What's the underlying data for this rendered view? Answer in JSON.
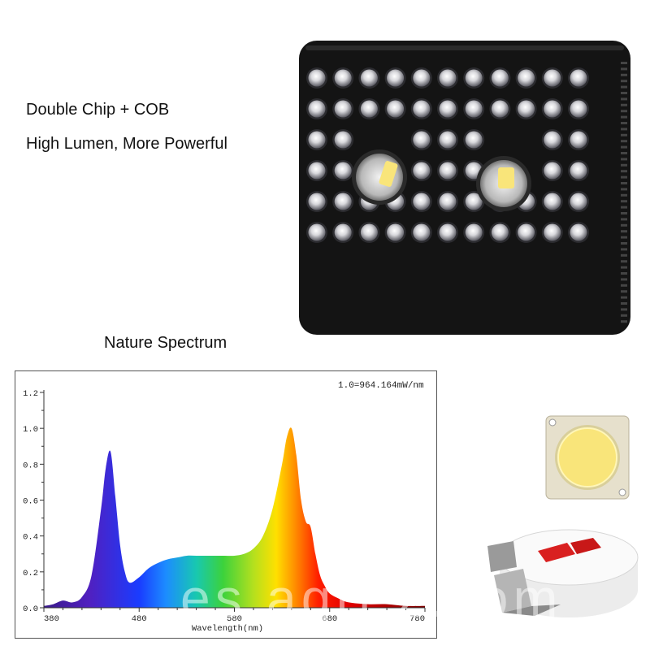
{
  "headline": {
    "line1": "Double Chip + COB",
    "line2": "High Lumen, More Powerful"
  },
  "spectrum_title": "Nature Spectrum",
  "watermark": "es.agri.z.com",
  "colors": {
    "panel_body": "#141414",
    "blue_peak": "#1a3cff",
    "red_peak": "#e10000",
    "cob_yellow": "#f9e57a"
  },
  "chart_data": {
    "type": "area",
    "annotation": "1.0=964.164mW/nm",
    "xlabel": "Wavelength(nm)",
    "ylabel": "",
    "xlim": [
      380,
      780
    ],
    "ylim": [
      0,
      1.2
    ],
    "x_ticks": [
      380,
      480,
      580,
      680,
      780
    ],
    "y_ticks": [
      "0.0",
      "0.2",
      "0.4",
      "0.6",
      "0.8",
      "1.0",
      "1.2"
    ],
    "grid": false,
    "x": [
      380,
      390,
      400,
      410,
      420,
      430,
      440,
      445,
      450,
      455,
      460,
      465,
      470,
      480,
      490,
      500,
      510,
      520,
      530,
      540,
      550,
      560,
      570,
      580,
      590,
      600,
      610,
      620,
      630,
      635,
      640,
      645,
      650,
      655,
      660,
      665,
      670,
      675,
      680,
      690,
      700,
      720,
      740,
      760,
      780
    ],
    "y": [
      0.01,
      0.02,
      0.04,
      0.03,
      0.06,
      0.18,
      0.55,
      0.78,
      0.87,
      0.62,
      0.35,
      0.2,
      0.14,
      0.17,
      0.22,
      0.25,
      0.27,
      0.28,
      0.29,
      0.29,
      0.29,
      0.29,
      0.29,
      0.29,
      0.3,
      0.33,
      0.4,
      0.55,
      0.8,
      0.95,
      1.0,
      0.85,
      0.6,
      0.48,
      0.45,
      0.3,
      0.18,
      0.12,
      0.08,
      0.05,
      0.03,
      0.02,
      0.02,
      0.01,
      0.01
    ]
  }
}
